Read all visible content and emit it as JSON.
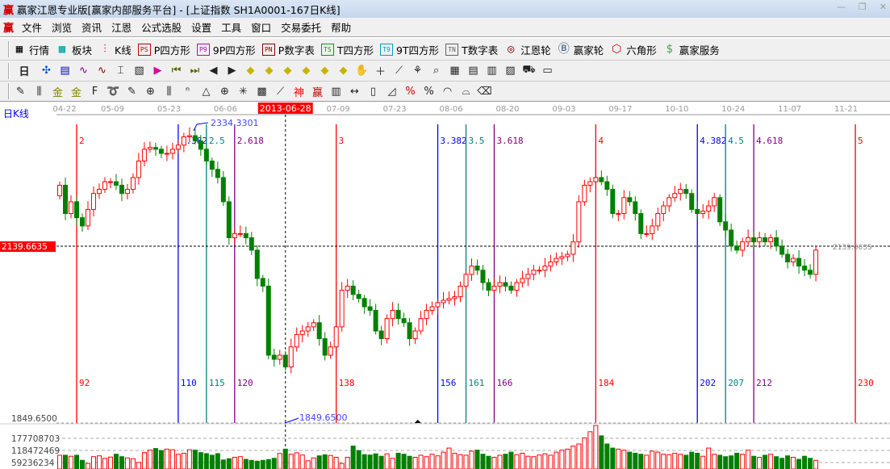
{
  "window": {
    "title": "赢家江恩专业版[赢家内部服务平台] - [上证指数  SH1A0001-167日K线]",
    "logo": "赢"
  },
  "menu": [
    "文件",
    "浏览",
    "资讯",
    "江恩",
    "公式选股",
    "设置",
    "工具",
    "窗口",
    "交易委托",
    "帮助"
  ],
  "toolbar1": [
    {
      "icon": "quote-grid-icon",
      "glyph": "▦",
      "label": "行情",
      "color": "#000"
    },
    {
      "icon": "sector-blocks-icon",
      "glyph": "▩",
      "label": "板块",
      "color": "#00a0a0"
    },
    {
      "icon": "kline-icon",
      "glyph": "⫶",
      "label": "K线",
      "color": "#d00000"
    },
    {
      "icon": "ps-icon",
      "glyph": "PS",
      "label": "P四方形",
      "color": "#c00000"
    },
    {
      "icon": "p9-icon",
      "glyph": "P9",
      "label": "9P四方形",
      "color": "#c000c0"
    },
    {
      "icon": "pn-icon",
      "glyph": "PN",
      "label": "P数字表",
      "color": "#800000"
    },
    {
      "icon": "ts-icon",
      "glyph": "TS",
      "label": "T四方形",
      "color": "#00a000"
    },
    {
      "icon": "t9-icon",
      "glyph": "T9",
      "label": "9T四方形",
      "color": "#00a0c0"
    },
    {
      "icon": "tn-icon",
      "glyph": "TN",
      "label": "T数字表",
      "color": "#606060"
    },
    {
      "icon": "gann-wheel-icon",
      "glyph": "◎",
      "label": "江恩轮",
      "color": "#800000"
    },
    {
      "icon": "big-wheel-icon",
      "glyph": "Ⓑ",
      "label": "赢家轮",
      "color": "#205080"
    },
    {
      "icon": "hexagon-icon",
      "glyph": "⬡",
      "label": "六角形",
      "color": "#c00000"
    },
    {
      "icon": "dollar-icon",
      "glyph": "$",
      "label": "赢家服务",
      "color": "#50a050"
    }
  ],
  "toolbar2": [
    "period-day-icon",
    "mesh-icon",
    "notes-icon",
    "wave3-icon",
    "wave9-icon",
    "candle-type-icon",
    "map-icon",
    "flag-icon",
    "first-bar-icon",
    "last-bar-icon",
    "prev-icon",
    "next-icon",
    "arrow-left-icon",
    "arrow-right-icon",
    "expand-h-icon",
    "collapse-h-icon",
    "expand-all-icon",
    "expand-v-icon",
    "hand-icon",
    "crosshair-icon",
    "line-tool-icon",
    "shape-icon",
    "zoom-icon",
    "calendar-icon",
    "calculator-icon",
    "list-icon",
    "print-icon",
    "truck-icon",
    "monitor-icon"
  ],
  "toolbar2_day_label": "日",
  "toolbar3": [
    "pen-icon",
    "grid-lines-icon",
    "gold-icon",
    "gold2-icon",
    "fib-icon",
    "spiral-icon",
    "pen2-icon",
    "circle-grid-icon",
    "parallel-icon",
    "n2-icon",
    "triangle-icon",
    "target-icon",
    "web-icon",
    "square-web-icon",
    "angle-icon",
    "shen-icon",
    "ying-icon",
    "ruler-icon",
    "measure-icon",
    "box-icon",
    "fan-icon",
    "percent-icon",
    "percent2-icon",
    "arc-icon",
    "speed-icon",
    "eraser-icon"
  ],
  "chart": {
    "period_label": "日K线",
    "date_ticks": [
      [
        "04-22",
        89.5
      ],
      [
        "05-09",
        98
      ],
      [
        "05-23",
        108
      ],
      [
        "06-06",
        118
      ],
      [
        "07-09",
        138
      ],
      [
        "07-23",
        148
      ],
      [
        "08-06",
        158
      ],
      [
        "08-20",
        168
      ],
      [
        "09-03",
        178
      ],
      [
        "09-17",
        188
      ],
      [
        "10-10",
        198
      ],
      [
        "10-24",
        208
      ],
      [
        "11-07",
        218
      ],
      [
        "11-21",
        228
      ]
    ],
    "cursor": {
      "date": "2013-06-28",
      "bar": 129
    },
    "price_line": {
      "value": "2139.6635",
      "right_label": "2139.6635"
    },
    "low_label": "1849.6500",
    "low_marker": "1849.6500",
    "high_marker": "2334.3301",
    "fib_lines": [
      {
        "bar": 92,
        "top": "2",
        "bottom": "92",
        "color": "#ff0000"
      },
      {
        "bar": 110,
        "top": "2.382",
        "bottom": "110",
        "color": "#0000ff"
      },
      {
        "bar": 115,
        "top": "2.5",
        "bottom": "115",
        "color": "#008080"
      },
      {
        "bar": 120,
        "top": "2.618",
        "bottom": "120",
        "color": "#800080"
      },
      {
        "bar": 138,
        "top": "3",
        "bottom": "138",
        "color": "#ff0000"
      },
      {
        "bar": 156,
        "top": "3.382",
        "bottom": "156",
        "color": "#0000ff"
      },
      {
        "bar": 161,
        "top": "3.5",
        "bottom": "161",
        "color": "#008080"
      },
      {
        "bar": 166,
        "top": "3.618",
        "bottom": "166",
        "color": "#800080"
      },
      {
        "bar": 184,
        "top": "4",
        "bottom": "184",
        "color": "#ff0000"
      },
      {
        "bar": 202,
        "top": "4.382",
        "bottom": "202",
        "color": "#0000ff"
      },
      {
        "bar": 207,
        "top": "4.5",
        "bottom": "207",
        "color": "#008080"
      },
      {
        "bar": 212,
        "top": "4.618",
        "bottom": "212",
        "color": "#800080"
      },
      {
        "bar": 230,
        "top": "5",
        "bottom": "230",
        "color": "#ff0000"
      }
    ],
    "volume_ticks": [
      "177708703",
      "118472469",
      "59236234"
    ],
    "colors": {
      "up": "#ff0000",
      "down": "#008000",
      "cursor_label_bg": "#ff0000"
    }
  },
  "chart_data": {
    "type": "candlestick",
    "first_bar": 89,
    "closes": [
      2243,
      2195,
      2215,
      2188,
      2174,
      2202,
      2229,
      2236,
      2249,
      2249,
      2243,
      2229,
      2236,
      2256,
      2284,
      2304,
      2307,
      2304,
      2297,
      2297,
      2304,
      2311,
      2325,
      2327,
      2318,
      2304,
      2284,
      2270,
      2256,
      2215,
      2154,
      2161,
      2161,
      2154,
      2133,
      2085,
      2072,
      1955,
      1948,
      1955,
      1935,
      1969,
      1990,
      1996,
      2003,
      2010,
      1983,
      1955,
      1969,
      2003,
      2065,
      2072,
      2058,
      2051,
      2037,
      2031,
      1996,
      1983,
      2017,
      2031,
      2017,
      2010,
      1983,
      1996,
      2017,
      2031,
      2037,
      2044,
      2048,
      2051,
      2054,
      2072,
      2092,
      2106,
      2099,
      2078,
      2065,
      2072,
      2078,
      2072,
      2065,
      2078,
      2085,
      2092,
      2099,
      2099,
      2106,
      2113,
      2119,
      2122,
      2126,
      2147,
      2215,
      2243,
      2249,
      2256,
      2249,
      2236,
      2195,
      2195,
      2222,
      2215,
      2195,
      2161,
      2161,
      2174,
      2195,
      2208,
      2222,
      2229,
      2236,
      2229,
      2202,
      2195,
      2199,
      2208,
      2222,
      2181,
      2167,
      2140,
      2133,
      2147,
      2154,
      2147,
      2154,
      2147,
      2154,
      2140,
      2126,
      2113,
      2119,
      2106,
      2099,
      2092,
      2133
    ],
    "volume_millions": [
      95,
      95,
      90,
      95,
      70,
      55,
      88,
      92,
      80,
      86,
      100,
      88,
      82,
      78,
      60,
      108,
      120,
      128,
      118,
      125,
      122,
      100,
      105,
      122,
      120,
      108,
      103,
      95,
      103,
      72,
      78,
      85,
      88,
      75,
      70,
      66,
      70,
      74,
      80,
      104,
      125,
      100,
      107,
      96,
      68,
      82,
      92,
      97,
      94,
      85,
      55,
      85,
      140,
      118,
      98,
      96,
      102,
      90,
      102,
      80,
      105,
      100,
      90,
      85,
      95,
      88,
      100,
      92,
      110,
      130,
      105,
      98,
      95,
      115,
      120,
      100,
      90,
      85,
      95,
      100,
      110,
      98,
      105,
      90,
      88,
      96,
      102,
      95,
      110,
      120,
      125,
      140,
      150,
      180,
      210,
      240,
      190,
      150,
      130,
      125,
      120,
      110,
      105,
      100,
      95,
      115,
      110,
      100,
      98,
      105,
      100,
      95,
      110,
      105,
      90,
      130,
      100,
      95,
      88,
      92,
      105,
      100,
      120,
      90,
      85,
      95,
      100,
      88,
      80,
      92,
      85,
      75,
      90,
      80,
      70,
      85,
      105
    ]
  }
}
